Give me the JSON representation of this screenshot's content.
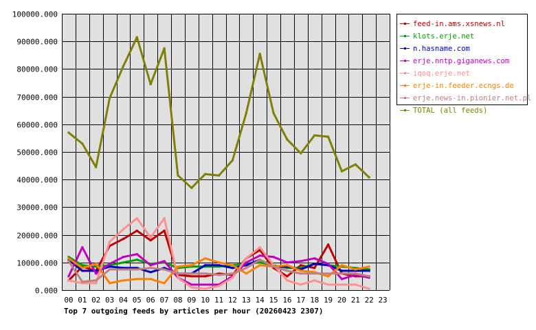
{
  "chart_data": {
    "type": "line",
    "title": "Top 7 outgoing feeds by articles per hour (20260423 2307)",
    "xlabel": "",
    "ylabel": "",
    "categories": [
      "00",
      "01",
      "02",
      "03",
      "04",
      "05",
      "06",
      "07",
      "08",
      "09",
      "10",
      "11",
      "12",
      "13",
      "14",
      "15",
      "16",
      "17",
      "18",
      "19",
      "20",
      "21",
      "22",
      "23"
    ],
    "y_ticks": [
      "0.000",
      "10000.000",
      "20000.000",
      "30000.000",
      "40000.000",
      "50000.000",
      "60000.000",
      "70000.000",
      "80000.000",
      "90000.000",
      "100000.000"
    ],
    "ylim": [
      0,
      100000
    ],
    "grid": true,
    "legend_position": "right",
    "series": [
      {
        "name": "feed-in.ams.xsnews.nl",
        "color": "#c00000",
        "values": [
          3500,
          8500,
          7000,
          16000,
          18500,
          21500,
          18000,
          21500,
          5500,
          5000,
          5000,
          6000,
          5500,
          11500,
          14500,
          8000,
          5000,
          9000,
          8000,
          16500,
          6000,
          5000,
          5000,
          null
        ]
      },
      {
        "name": "klots.erje.net",
        "color": "#00a000",
        "values": [
          12000,
          9000,
          8500,
          9000,
          10000,
          11000,
          9500,
          10000,
          8000,
          8500,
          8500,
          8500,
          9000,
          9500,
          10000,
          9000,
          8000,
          8000,
          9500,
          9000,
          8500,
          8000,
          7500,
          null
        ]
      },
      {
        "name": "n.hasname.com",
        "color": "#0000c0",
        "values": [
          11000,
          7000,
          7000,
          8500,
          8000,
          8000,
          6500,
          8000,
          6000,
          6000,
          9000,
          9000,
          8000,
          9000,
          11000,
          8500,
          8500,
          7500,
          9500,
          9000,
          7000,
          7000,
          7000,
          null
        ]
      },
      {
        "name": "erje.nntp.giganews.com",
        "color": "#c000c0",
        "values": [
          5000,
          15500,
          6000,
          9500,
          12000,
          13000,
          9000,
          10500,
          4500,
          2000,
          2000,
          2000,
          5000,
          10000,
          12500,
          12000,
          10000,
          10500,
          11500,
          9500,
          4000,
          5500,
          4500,
          null
        ]
      },
      {
        "name": "iqoq.erje.net",
        "color": "#ff9090",
        "values": [
          3500,
          2500,
          2500,
          17500,
          22000,
          26000,
          19000,
          26000,
          4500,
          1000,
          500,
          1500,
          4500,
          11500,
          15500,
          9000,
          3500,
          2000,
          3500,
          2000,
          2000,
          2000,
          500,
          null
        ]
      },
      {
        "name": "erje-in.feeder.ecngs.de",
        "color": "#ff8000",
        "values": [
          11500,
          8000,
          9500,
          2500,
          3500,
          4000,
          4000,
          2500,
          8500,
          9000,
          11500,
          10000,
          9000,
          6000,
          9000,
          8500,
          9000,
          7000,
          6500,
          5000,
          9000,
          7500,
          8500,
          null
        ]
      },
      {
        "name": "erje.news-in.pionier.net.pl",
        "color": "#c08080",
        "values": [
          10500,
          3000,
          3500,
          7500,
          7500,
          7500,
          8000,
          7500,
          6000,
          6000,
          6000,
          5500,
          6000,
          8000,
          11000,
          8500,
          7000,
          6000,
          6000,
          6000,
          6000,
          6000,
          5000,
          null
        ]
      },
      {
        "name": "TOTAL (all feeds)",
        "color": "#808000",
        "values": [
          57000,
          53000,
          44500,
          69500,
          81000,
          91500,
          74500,
          87500,
          41500,
          37000,
          42000,
          41500,
          47000,
          64000,
          85500,
          64000,
          54500,
          49500,
          56000,
          55500,
          43000,
          45500,
          40800,
          null
        ]
      }
    ]
  }
}
